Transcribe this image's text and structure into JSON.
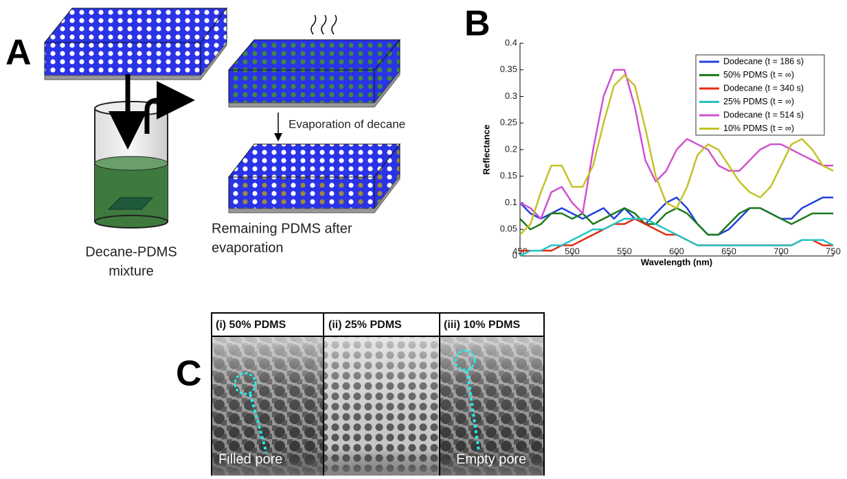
{
  "panel_a": {
    "letter": "A",
    "step": "Evaporation of decane",
    "mixture_label": [
      "Decane-PDMS",
      "mixture"
    ],
    "remaining_label": [
      "Remaining PDMS after",
      "evaporation"
    ]
  },
  "chart_data": {
    "type": "line",
    "title": "B",
    "x_label": "Wavelength (nm)",
    "y_label": "Reflectance",
    "x": [
      450,
      460,
      470,
      480,
      490,
      500,
      510,
      520,
      530,
      540,
      550,
      560,
      570,
      580,
      590,
      600,
      610,
      620,
      630,
      640,
      650,
      660,
      670,
      680,
      690,
      700,
      710,
      720,
      730,
      740,
      750
    ],
    "xlim": [
      450,
      750
    ],
    "xticks": [
      450,
      500,
      550,
      600,
      650,
      700,
      750
    ],
    "ylim": [
      0,
      0.4
    ],
    "yticks": [
      0,
      0.05,
      0.1,
      0.15,
      0.2,
      0.25,
      0.3,
      0.35,
      0.4
    ],
    "grid": false,
    "legend": "top-right",
    "series": [
      {
        "name": "Dodecane (t = 186 s)",
        "color": "#1f3fe0",
        "values": [
          0.1,
          0.08,
          0.07,
          0.08,
          0.09,
          0.08,
          0.07,
          0.08,
          0.09,
          0.07,
          0.09,
          0.07,
          0.06,
          0.08,
          0.1,
          0.11,
          0.09,
          0.06,
          0.04,
          0.04,
          0.05,
          0.07,
          0.09,
          0.09,
          0.08,
          0.07,
          0.07,
          0.09,
          0.1,
          0.11,
          0.11
        ]
      },
      {
        "name": "50% PDMS (t = ∞)",
        "color": "#1a7a1a",
        "values": [
          0.07,
          0.05,
          0.06,
          0.08,
          0.08,
          0.07,
          0.08,
          0.06,
          0.07,
          0.08,
          0.09,
          0.08,
          0.06,
          0.06,
          0.08,
          0.09,
          0.08,
          0.06,
          0.04,
          0.04,
          0.06,
          0.08,
          0.09,
          0.09,
          0.08,
          0.07,
          0.06,
          0.07,
          0.08,
          0.08,
          0.08
        ]
      },
      {
        "name": "Dodecane (t = 340 s)",
        "color": "#e42a12",
        "values": [
          0.01,
          0.01,
          0.01,
          0.01,
          0.02,
          0.02,
          0.03,
          0.04,
          0.05,
          0.06,
          0.06,
          0.07,
          0.06,
          0.05,
          0.04,
          0.04,
          0.03,
          0.02,
          0.02,
          0.02,
          0.02,
          0.02,
          0.02,
          0.02,
          0.02,
          0.02,
          0.02,
          0.03,
          0.03,
          0.02,
          0.02
        ]
      },
      {
        "name": "25% PDMS (t = ∞)",
        "color": "#22c2c2",
        "values": [
          0,
          0.01,
          0.01,
          0.02,
          0.02,
          0.03,
          0.04,
          0.05,
          0.05,
          0.06,
          0.07,
          0.07,
          0.07,
          0.06,
          0.05,
          0.04,
          0.03,
          0.02,
          0.02,
          0.02,
          0.02,
          0.02,
          0.02,
          0.02,
          0.02,
          0.02,
          0.02,
          0.03,
          0.03,
          0.03,
          0.02
        ]
      },
      {
        "name": "Dodecane (t = 514 s)",
        "color": "#d050d0",
        "values": [
          0.1,
          0.09,
          0.07,
          0.12,
          0.13,
          0.1,
          0.08,
          0.2,
          0.3,
          0.35,
          0.35,
          0.28,
          0.18,
          0.14,
          0.16,
          0.2,
          0.22,
          0.21,
          0.2,
          0.17,
          0.16,
          0.16,
          0.18,
          0.2,
          0.21,
          0.21,
          0.2,
          0.19,
          0.18,
          0.17,
          0.17
        ]
      },
      {
        "name": "10% PDMS (t = ∞)",
        "color": "#c2c224",
        "values": [
          0.04,
          0.06,
          0.12,
          0.17,
          0.17,
          0.13,
          0.13,
          0.17,
          0.25,
          0.32,
          0.34,
          0.32,
          0.24,
          0.15,
          0.1,
          0.09,
          0.13,
          0.19,
          0.21,
          0.2,
          0.17,
          0.14,
          0.12,
          0.11,
          0.13,
          0.17,
          0.21,
          0.22,
          0.2,
          0.17,
          0.16
        ]
      }
    ]
  },
  "panel_c": {
    "letter": "C",
    "headers": [
      "(i) 50% PDMS",
      "(ii) 25% PDMS",
      "(iii) 10% PDMS"
    ],
    "labels": [
      "Filled pore",
      "Empty pore"
    ]
  }
}
